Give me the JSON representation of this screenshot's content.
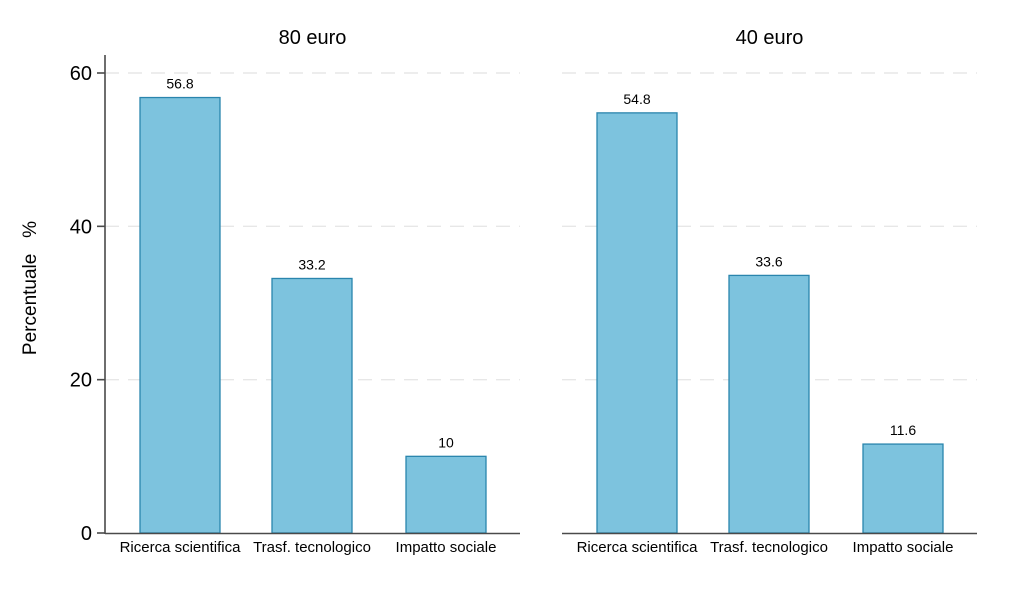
{
  "chart_data": {
    "type": "bar",
    "title": "",
    "ylabel": "Percentuale   %",
    "xlabel": "",
    "ylim": [
      0,
      60
    ],
    "yticks": [
      0,
      20,
      40,
      60
    ],
    "grid": "horizontal dashed gridlines at 20, 40, 60; y-axis shown only on left panel",
    "legend_position": "none",
    "categories": [
      "Ricerca scientifica",
      "Trasf. tecnologico",
      "Impatto sociale"
    ],
    "panels": [
      {
        "title": "80 euro",
        "values": [
          56.8,
          33.2,
          10
        ],
        "value_labels": [
          "56.8",
          "33.2",
          "10"
        ]
      },
      {
        "title": "40 euro",
        "values": [
          54.8,
          33.6,
          11.6
        ],
        "value_labels": [
          "54.8",
          "33.6",
          "11.6"
        ]
      }
    ],
    "colors": {
      "bar_fill": "#7dc3de",
      "bar_stroke": "#2a85ad",
      "grid": "#e7e7e7",
      "axis": "#4a4a4a",
      "text": "#000000",
      "background": "#ffffff"
    }
  }
}
